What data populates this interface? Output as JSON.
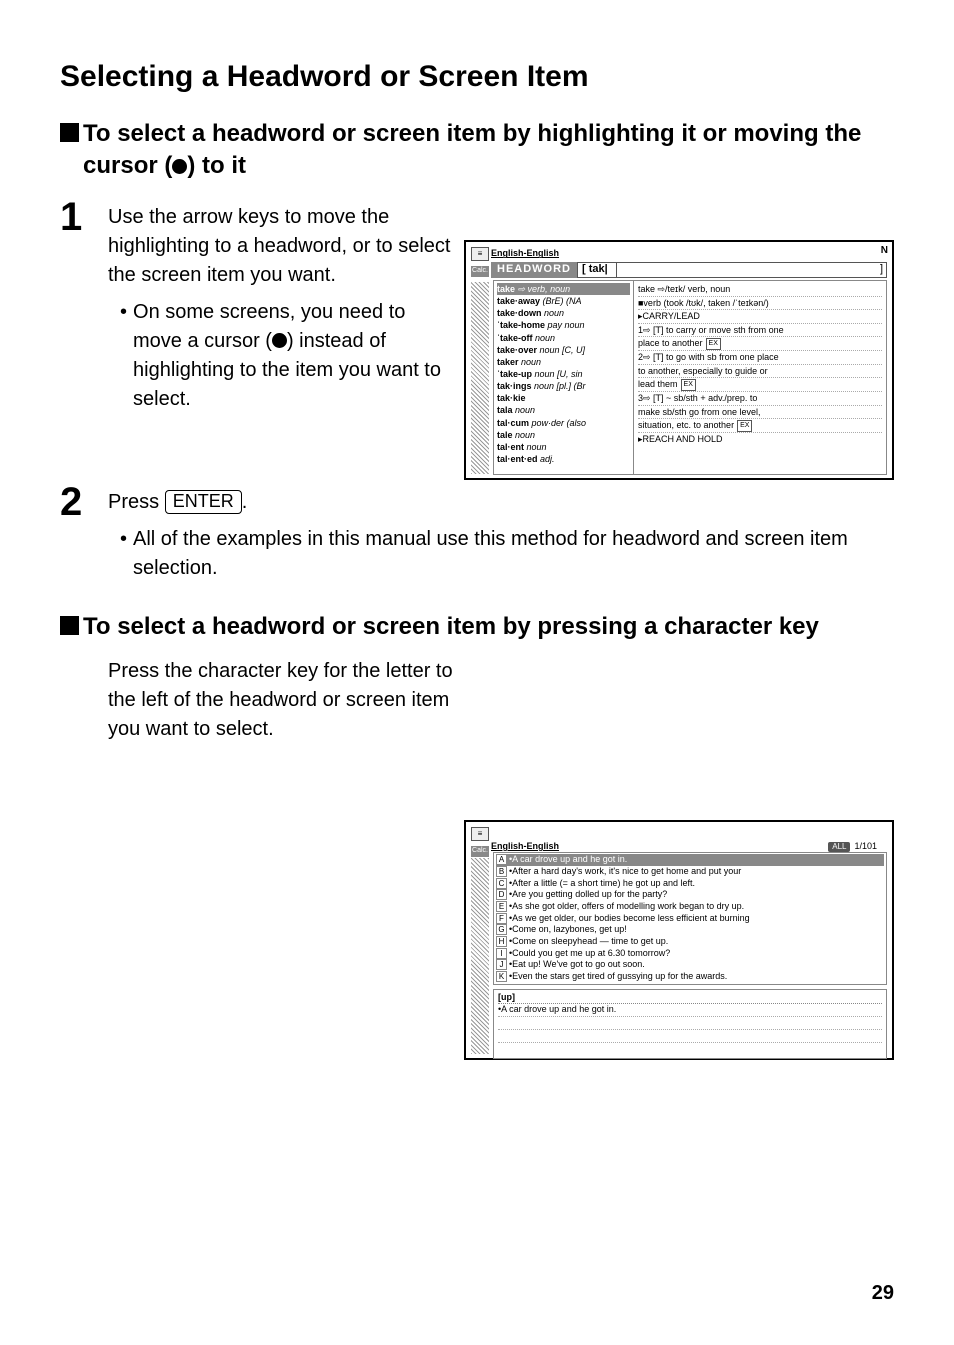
{
  "page": {
    "title": "Selecting a Headword or Screen Item",
    "pageNumber": "29"
  },
  "section1": {
    "title": "To select a headword or screen item by highlighting it or moving the cursor (●) to it",
    "step1": {
      "number": "1",
      "text": "Use the arrow keys to move the highlighting to a headword, or to select the screen item you want.",
      "bullet": "On some screens, you need to move a cursor (●) instead of highlighting to the item you want to select."
    },
    "step2": {
      "number": "2",
      "textPrefix": "Press ",
      "keyLabel": "ENTER",
      "textSuffix": ".",
      "bullet": "All of the examples in this manual use this method for headword and screen item selection."
    }
  },
  "section2": {
    "title": "To select a headword or screen item by pressing a character key",
    "text": "Press the character key for the letter to the left of the headword or screen item you want to select."
  },
  "screenshot1": {
    "tabLabel": "English-English",
    "calcLabel": "Calc.",
    "headwordLabel": "HEADWORD",
    "headwordInput": "tak",
    "topRightSymbol": "N",
    "leftItems": [
      {
        "text": "take ⇨ verb, noun",
        "selected": true
      },
      {
        "text": "take·away (BrE) (NA"
      },
      {
        "text": "take·down noun"
      },
      {
        "text": "ˈtake-home pay noun"
      },
      {
        "text": "ˈtake-off noun"
      },
      {
        "text": "take·over noun [C, U]"
      },
      {
        "text": "taker noun"
      },
      {
        "text": "ˈtake-up noun [U, sin"
      },
      {
        "text": "tak·ings noun [pl.] (Br"
      },
      {
        "text": "tak·kie"
      },
      {
        "text": "tala noun"
      },
      {
        "text": "tal·cum pow·der (also"
      },
      {
        "text": "tale noun"
      },
      {
        "text": "tal·ent noun"
      },
      {
        "text": "tal·ent·ed adj."
      }
    ],
    "rightLines": [
      {
        "text": "take ⇨/teɪk/ verb, noun",
        "bold": true
      },
      {
        "text": "■verb (took /tʊk/, taken /ˈteɪkən/)"
      },
      {
        "text": "▸CARRY/LEAD"
      },
      {
        "text": "1⇨ [T] to carry or move sth from one"
      },
      {
        "text": "  place to another",
        "ex": true
      },
      {
        "text": "2⇨ [T] to go with sb from one place"
      },
      {
        "text": "  to another, especially to guide or"
      },
      {
        "text": "  lead them",
        "ex": true
      },
      {
        "text": "3⇨ [T] ~ sb/sth + adv./prep. to"
      },
      {
        "text": "  make sb/sth go from one level,"
      },
      {
        "text": "  situation, etc. to another",
        "ex": true
      },
      {
        "text": "▸REACH AND HOLD",
        "noBorder": true
      }
    ]
  },
  "screenshot2": {
    "tabLabel": "English-English",
    "calcLabel": "Calc.",
    "allLabel": "ALL",
    "pager": "1/101",
    "items": [
      {
        "letter": "A",
        "text": "•A car drove up and he got in.",
        "selected": true
      },
      {
        "letter": "B",
        "text": "•After a hard day's work, it's nice to get home and put your"
      },
      {
        "letter": "C",
        "text": "•After a little (= a short time) he got up and left."
      },
      {
        "letter": "D",
        "text": "•Are you getting dolled up for the party?"
      },
      {
        "letter": "E",
        "text": "•As she got older, offers of modelling work began to dry up."
      },
      {
        "letter": "F",
        "text": "•As we get older, our bodies become less efficient at burning"
      },
      {
        "letter": "G",
        "text": "•Come on, lazybones, get up!"
      },
      {
        "letter": "H",
        "text": "•Come on sleepyhead — time to get up."
      },
      {
        "letter": "I",
        "text": "•Could you get me up at 6.30 tomorrow?"
      },
      {
        "letter": "J",
        "text": "•Eat up! We've got to go out soon."
      },
      {
        "letter": "K",
        "text": "•Even the stars get tired of gussying up for the awards."
      }
    ],
    "bottomLabel": "[up]",
    "bottomText": "•A car drove up and he got in."
  }
}
